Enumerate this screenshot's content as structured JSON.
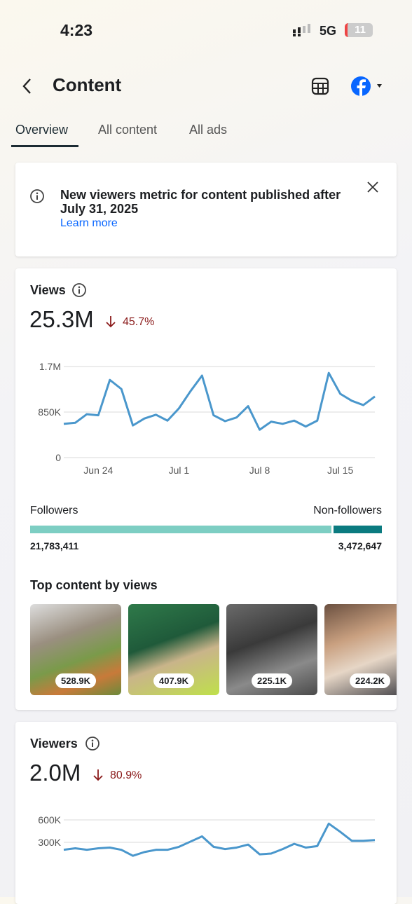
{
  "status_bar": {
    "time": "4:23",
    "network": "5G",
    "battery": "11"
  },
  "header": {
    "title": "Content"
  },
  "tabs": [
    "Overview",
    "All content",
    "All ads"
  ],
  "notice": {
    "text": "New viewers metric for content published after July 31, 2025",
    "link": "Learn more"
  },
  "views": {
    "title": "Views",
    "value": "25.3M",
    "change": "45.7%",
    "chart": {
      "type": "line",
      "color": "#4a97cc",
      "categories": [
        null,
        null,
        null,
        "Jun 24",
        null,
        null,
        null,
        null,
        null,
        null,
        "Jul 1",
        null,
        null,
        null,
        null,
        null,
        null,
        "Jul 8",
        null,
        null,
        null,
        null,
        null,
        null,
        "Jul 15",
        null,
        null,
        null
      ],
      "values": [
        630000,
        650000,
        810000,
        790000,
        1450000,
        1280000,
        600000,
        730000,
        800000,
        690000,
        920000,
        1240000,
        1530000,
        790000,
        680000,
        750000,
        960000,
        520000,
        670000,
        630000,
        690000,
        580000,
        690000,
        1580000,
        1190000,
        1060000,
        980000,
        1140000
      ],
      "ylim": [
        0,
        1700000
      ],
      "yticks": [
        0,
        {
          "value": 850000,
          "label": "850K"
        },
        {
          "value": 1700000,
          "label": "1.7M"
        }
      ],
      "grid": true
    },
    "followers_label": "Followers",
    "non_followers_label": "Non-followers",
    "followers": {
      "value": 21783411,
      "label": "21,783,411"
    },
    "non_followers": {
      "value": 3472647,
      "label": "3,472,647"
    },
    "top_content_title": "Top content by views",
    "top_content": [
      "528.9K",
      "407.9K",
      "225.1K",
      "224.2K"
    ]
  },
  "viewers": {
    "title": "Viewers",
    "value": "2.0M",
    "change": "80.9%",
    "chart": {
      "type": "line",
      "color": "#4a97cc",
      "values": [
        200000,
        220000,
        200000,
        220000,
        230000,
        200000,
        120000,
        170000,
        200000,
        200000,
        240000,
        310000,
        380000,
        240000,
        210000,
        230000,
        270000,
        140000,
        150000,
        210000,
        280000,
        230000,
        250000,
        550000,
        440000,
        320000,
        320000,
        330000
      ],
      "ylim": [
        0,
        600000
      ],
      "yticks": [
        {
          "value": 300000,
          "label": "300K"
        },
        {
          "value": 600000,
          "label": "600K"
        }
      ],
      "grid": true
    }
  }
}
